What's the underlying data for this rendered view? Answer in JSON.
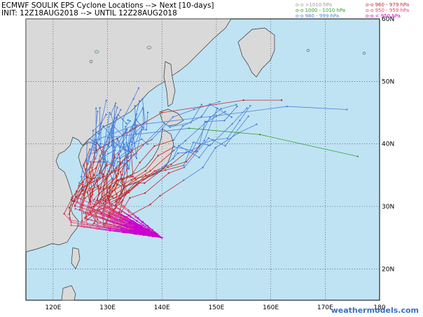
{
  "title": {
    "line1": "ECMWF SOULIK EPS Cyclone Locations --> Next [10-days]",
    "line2": "INIT: 12Z18AUG2018 --> UNTIL 12Z28AUG2018"
  },
  "legend": [
    {
      "label": "o-o >1010 hPa",
      "color": "#9a9a9a"
    },
    {
      "label": "o-o 1000 - 1010 hPa",
      "color": "#2aa02a"
    },
    {
      "label": "o-o 980 - 999 hPa",
      "color": "#4a7fd8"
    },
    {
      "label": "o-o 960 - 979 hPa",
      "color": "#c42a2a"
    },
    {
      "label": "o-o 950 - 959 hPa",
      "color": "#e0487a"
    },
    {
      "label": "o-o < 950 hPa",
      "color": "#cc00cc"
    }
  ],
  "axes": {
    "lon_labels": [
      "120E",
      "130E",
      "140E",
      "150E",
      "160E",
      "170E",
      "180"
    ],
    "lat_labels": [
      "20N",
      "30N",
      "40N",
      "50N",
      "60N"
    ],
    "lon_range": [
      115,
      180
    ],
    "lat_range": [
      15,
      60
    ]
  },
  "colors": {
    "ocean": "#bfe3f3",
    "land": "#d9d9d9",
    "coast": "#333333",
    "grid": "#222222"
  },
  "watermark": {
    "part1": "weather",
    "part2": "models.com"
  }
}
